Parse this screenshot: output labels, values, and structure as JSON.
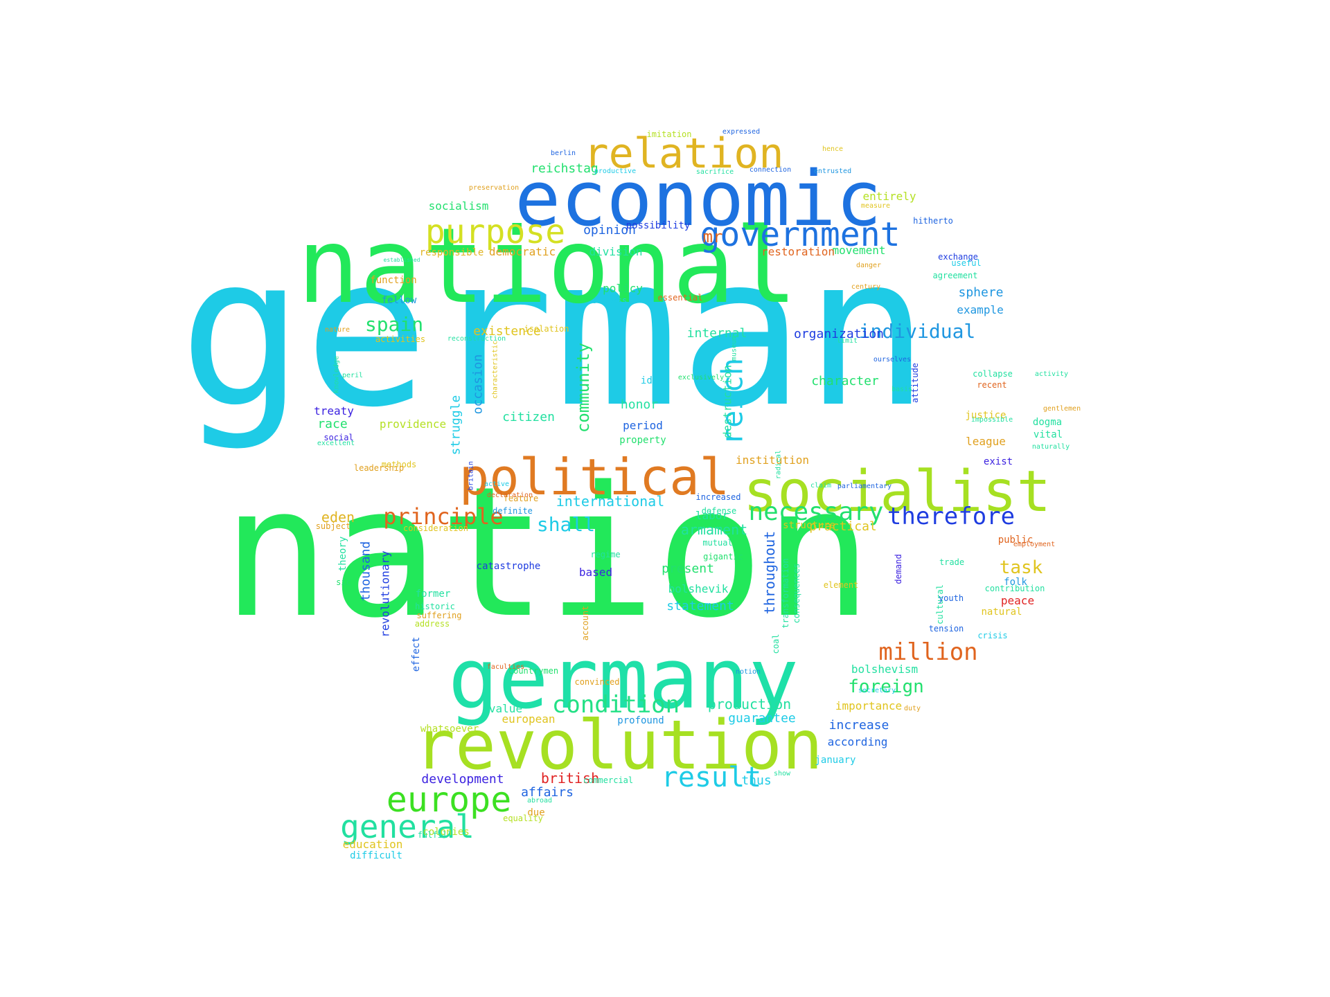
{
  "words": [
    {
      "text": "german",
      "color": "#1ecbe6"
    },
    {
      "text": "nation",
      "color": "#22e85a"
    },
    {
      "text": "national",
      "color": "#22e85a"
    },
    {
      "text": "economic",
      "color": "#1d72e0"
    },
    {
      "text": "germany",
      "color": "#1ee0a8"
    },
    {
      "text": "revolution",
      "color": "#a6e022"
    },
    {
      "text": "socialist",
      "color": "#a6e022"
    },
    {
      "text": "political",
      "color": "#e07a22"
    },
    {
      "text": "relation",
      "color": "#e0b422"
    },
    {
      "text": "government",
      "color": "#1d72e0"
    },
    {
      "text": "purpose",
      "color": "#d4e022"
    },
    {
      "text": "europe",
      "color": "#3ce022"
    },
    {
      "text": "general",
      "color": "#22e0a0"
    },
    {
      "text": "result",
      "color": "#1ecbe6"
    },
    {
      "text": "condition",
      "color": "#22e085"
    },
    {
      "text": "million",
      "color": "#e0641e"
    },
    {
      "text": "therefore",
      "color": "#1e3ce0"
    },
    {
      "text": "necessary",
      "color": "#22e06e"
    },
    {
      "text": "principle",
      "color": "#e0641e"
    },
    {
      "text": "reich",
      "color": "#1ecbe6"
    },
    {
      "text": "individual",
      "color": "#1e96e0"
    },
    {
      "text": "community",
      "color": "#22e06e"
    },
    {
      "text": "shall",
      "color": "#1ecbe6"
    },
    {
      "text": "spain",
      "color": "#22e06e"
    },
    {
      "text": "foreign",
      "color": "#22e06e"
    },
    {
      "text": "task",
      "color": "#e0c41e"
    },
    {
      "text": "british",
      "color": "#e02222"
    },
    {
      "text": "struggle",
      "color": "#1ecbe6"
    },
    {
      "text": "occasion",
      "color": "#1e96e0"
    },
    {
      "text": "international",
      "color": "#1ecbe6"
    },
    {
      "text": "production",
      "color": "#22e0a0"
    },
    {
      "text": "development",
      "color": "#3c22e0"
    },
    {
      "text": "affairs",
      "color": "#1e64e0"
    },
    {
      "text": "reichstag",
      "color": "#22e06e"
    },
    {
      "text": "mr",
      "color": "#e0641e"
    },
    {
      "text": "organization",
      "color": "#1e3ce0"
    },
    {
      "text": "character",
      "color": "#22e06e"
    },
    {
      "text": "armament",
      "color": "#22e0a0"
    },
    {
      "text": "eden",
      "color": "#e0b422"
    },
    {
      "text": "opinion",
      "color": "#1e64e0"
    },
    {
      "text": "socialism",
      "color": "#22e06e"
    },
    {
      "text": "entirely",
      "color": "#b4e022"
    },
    {
      "text": "movement",
      "color": "#22e06e"
    },
    {
      "text": "restoration",
      "color": "#e0641e"
    },
    {
      "text": "division",
      "color": "#22e0a0"
    },
    {
      "text": "democratic",
      "color": "#e0a01e"
    },
    {
      "text": "responsible",
      "color": "#e0b422"
    },
    {
      "text": "sphere",
      "color": "#1e96e0"
    },
    {
      "text": "example",
      "color": "#1e96e0"
    },
    {
      "text": "policy",
      "color": "#22e06e"
    },
    {
      "text": "existence",
      "color": "#e0c41e"
    },
    {
      "text": "internal",
      "color": "#22e0a0"
    },
    {
      "text": "citizen",
      "color": "#22e0a0"
    },
    {
      "text": "honor",
      "color": "#22e0a0"
    },
    {
      "text": "period",
      "color": "#1e64e0"
    },
    {
      "text": "race",
      "color": "#22e06e"
    },
    {
      "text": "treaty",
      "color": "#3c22e0"
    },
    {
      "text": "providence",
      "color": "#b4e022"
    },
    {
      "text": "institution",
      "color": "#e0a01e"
    },
    {
      "text": "league",
      "color": "#e0a01e"
    },
    {
      "text": "justice",
      "color": "#e0c41e"
    },
    {
      "text": "dogma",
      "color": "#22e0a0"
    },
    {
      "text": "vital",
      "color": "#22e0a0"
    },
    {
      "text": "exist",
      "color": "#3c22e0"
    },
    {
      "text": "practical",
      "color": "#e0c41e"
    },
    {
      "text": "labor",
      "color": "#22e0a0"
    },
    {
      "text": "public",
      "color": "#e0641e"
    },
    {
      "text": "present",
      "color": "#22e06e"
    },
    {
      "text": "bolshevik",
      "color": "#22e0a0"
    },
    {
      "text": "statement",
      "color": "#1ecbe6"
    },
    {
      "text": "based",
      "color": "#3c22e0"
    },
    {
      "text": "throughout",
      "color": "#1e64e0"
    },
    {
      "text": "thousand",
      "color": "#1e64e0"
    },
    {
      "text": "revolutionary",
      "color": "#1e3ce0"
    },
    {
      "text": "peace",
      "color": "#e02222"
    },
    {
      "text": "folk",
      "color": "#1e96e0"
    },
    {
      "text": "bolshevism",
      "color": "#22e0a0"
    },
    {
      "text": "importance",
      "color": "#e0c41e"
    },
    {
      "text": "guarantee",
      "color": "#1ecbe6"
    },
    {
      "text": "increase",
      "color": "#1e64e0"
    },
    {
      "text": "according",
      "color": "#1e64e0"
    },
    {
      "text": "value",
      "color": "#22e0a0"
    },
    {
      "text": "european",
      "color": "#e0c41e"
    },
    {
      "text": "thus",
      "color": "#1ecbe6"
    },
    {
      "text": "education",
      "color": "#e0c41e"
    },
    {
      "text": "difficult",
      "color": "#1ecbe6"
    },
    {
      "text": "former",
      "color": "#22e0a0"
    },
    {
      "text": "catastrophe",
      "color": "#1e3ce0"
    },
    {
      "text": "possibility",
      "color": "#1e3ce0"
    },
    {
      "text": "hitherto",
      "color": "#1e64e0"
    },
    {
      "text": "agreement",
      "color": "#22e0a0"
    },
    {
      "text": "exchange",
      "color": "#1e3ce0"
    },
    {
      "text": "function",
      "color": "#e0a01e"
    },
    {
      "text": "fellow",
      "color": "#1e96e0"
    },
    {
      "text": "activities",
      "color": "#e0c41e"
    },
    {
      "text": "social",
      "color": "#3c22e0"
    },
    {
      "text": "methods",
      "color": "#e0c41e"
    },
    {
      "text": "subject",
      "color": "#e0a01e"
    },
    {
      "text": "theory",
      "color": "#22e0a0"
    },
    {
      "text": "sic",
      "color": "#22e06e"
    },
    {
      "text": "effect",
      "color": "#1e64e0"
    },
    {
      "text": "due",
      "color": "#e0a01e"
    },
    {
      "text": "colonies",
      "color": "#b4e022"
    },
    {
      "text": "january",
      "color": "#1ecbe6"
    },
    {
      "text": "profound",
      "color": "#1e96e0"
    },
    {
      "text": "whatsoever",
      "color": "#b4e022"
    },
    {
      "text": "destruction",
      "color": "#22e0a0"
    },
    {
      "text": "ideal",
      "color": "#1ecbe6"
    },
    {
      "text": "property",
      "color": "#22e06e"
    },
    {
      "text": "definite",
      "color": "#1e96e0"
    },
    {
      "text": "consideration",
      "color": "#e0c41e"
    },
    {
      "text": "transformation",
      "color": "#22e0a0"
    },
    {
      "text": "consequences",
      "color": "#22e0a0"
    },
    {
      "text": "demand",
      "color": "#3c22e0"
    },
    {
      "text": "cultural",
      "color": "#22e0a0"
    },
    {
      "text": "coal",
      "color": "#22e0a0"
    },
    {
      "text": "account",
      "color": "#e0a01e"
    },
    {
      "text": "suffering",
      "color": "#e0a01e"
    },
    {
      "text": "historic",
      "color": "#22e0a0"
    },
    {
      "text": "address",
      "color": "#b4e022"
    },
    {
      "text": "countrymen",
      "color": "#22e06e"
    },
    {
      "text": "convinced",
      "color": "#e0a01e"
    },
    {
      "text": "commercial",
      "color": "#22e0a0"
    },
    {
      "text": "abroad",
      "color": "#22e0a0"
    },
    {
      "text": "equality",
      "color": "#b4e022"
    },
    {
      "text": "fulfill",
      "color": "#22e0a0"
    },
    {
      "text": "natural",
      "color": "#e0c41e"
    },
    {
      "text": "contribution",
      "color": "#22e0a0"
    },
    {
      "text": "crisis",
      "color": "#1ecbe6"
    },
    {
      "text": "tension",
      "color": "#1e64e0"
    },
    {
      "text": "youth",
      "color": "#1e64e0"
    },
    {
      "text": "trade",
      "color": "#22e0a0"
    },
    {
      "text": "element",
      "color": "#e0c41e"
    },
    {
      "text": "gigantic",
      "color": "#22e06e"
    },
    {
      "text": "regime",
      "color": "#22e0a0"
    },
    {
      "text": "mutual",
      "color": "#22e0a0"
    },
    {
      "text": "structure",
      "color": "#e0c41e"
    },
    {
      "text": "defense",
      "color": "#22e0a0"
    },
    {
      "text": "increased",
      "color": "#1e64e0"
    },
    {
      "text": "feature",
      "color": "#e0a01e"
    },
    {
      "text": "leadership",
      "color": "#e0a01e"
    },
    {
      "text": "excellent",
      "color": "#22e0a0"
    },
    {
      "text": "knowledge",
      "color": "#22e0a0"
    },
    {
      "text": "peril",
      "color": "#22e0a0"
    },
    {
      "text": "nature",
      "color": "#e0a01e"
    },
    {
      "text": "reconstruction",
      "color": "#22e0a0"
    },
    {
      "text": "isolation",
      "color": "#e0c41e"
    },
    {
      "text": "success",
      "color": "#1ecbe6"
    },
    {
      "text": "essential",
      "color": "#e0641e"
    },
    {
      "text": "century",
      "color": "#e0a01e"
    },
    {
      "text": "danger",
      "color": "#e0a01e"
    },
    {
      "text": "useful",
      "color": "#1ecbe6"
    },
    {
      "text": "collapse",
      "color": "#22e0a0"
    },
    {
      "text": "recent",
      "color": "#e0641e"
    },
    {
      "text": "impossible",
      "color": "#22e0a0"
    },
    {
      "text": "naturally",
      "color": "#22e0a0"
    },
    {
      "text": "gentlemen",
      "color": "#e0a01e"
    },
    {
      "text": "activity",
      "color": "#22e0a0"
    },
    {
      "text": "attitude",
      "color": "#1e3ce0"
    },
    {
      "text": "limit",
      "color": "#22e0a0"
    },
    {
      "text": "imitation",
      "color": "#b4e022"
    },
    {
      "text": "expressed",
      "color": "#1e64e0"
    },
    {
      "text": "berlin",
      "color": "#1e64e0"
    },
    {
      "text": "hence",
      "color": "#e0c41e"
    },
    {
      "text": "productive",
      "color": "#1ecbe6"
    },
    {
      "text": "sacrifice",
      "color": "#22e0a0"
    },
    {
      "text": "connection",
      "color": "#1e64e0"
    },
    {
      "text": "entrusted",
      "color": "#1e96e0"
    },
    {
      "text": "preservation",
      "color": "#e0a01e"
    },
    {
      "text": "measure",
      "color": "#e0c41e"
    },
    {
      "text": "established",
      "color": "#22e0a0"
    },
    {
      "text": "characteristic",
      "color": "#e0c41e"
    },
    {
      "text": "employment",
      "color": "#e0641e"
    },
    {
      "text": "duty",
      "color": "#e0a01e"
    },
    {
      "text": "secretary",
      "color": "#1ecbe6"
    },
    {
      "text": "parliamentary",
      "color": "#1e64e0"
    },
    {
      "text": "claim",
      "color": "#22e0a0"
    },
    {
      "text": "radical",
      "color": "#22e0a0"
    },
    {
      "text": "active",
      "color": "#1ecbe6"
    },
    {
      "text": "declaration",
      "color": "#e0641e"
    },
    {
      "text": "britain",
      "color": "#1e3ce0"
    },
    {
      "text": "faculties",
      "color": "#e0641e"
    },
    {
      "text": "notion",
      "color": "#1e96e0"
    },
    {
      "text": "museum",
      "color": "#22e0a0"
    },
    {
      "text": "ourselves",
      "color": "#1e64e0"
    },
    {
      "text": "basis",
      "color": "#22e0a0"
    },
    {
      "text": "show",
      "color": "#22e0a0"
    },
    {
      "text": "exclusively",
      "color": "#22e06e"
    },
    {
      "text": "with",
      "color": "#1e64e0"
    }
  ]
}
